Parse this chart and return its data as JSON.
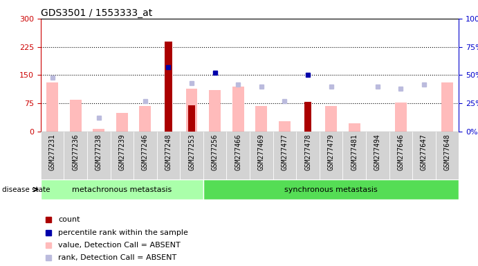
{
  "title": "GDS3501 / 1553333_at",
  "samples": [
    "GSM277231",
    "GSM277236",
    "GSM277238",
    "GSM277239",
    "GSM277246",
    "GSM277248",
    "GSM277253",
    "GSM277256",
    "GSM277466",
    "GSM277469",
    "GSM277477",
    "GSM277478",
    "GSM277479",
    "GSM277481",
    "GSM277494",
    "GSM277646",
    "GSM277647",
    "GSM277648"
  ],
  "count": [
    0,
    0,
    0,
    0,
    0,
    240,
    70,
    0,
    0,
    0,
    0,
    80,
    0,
    0,
    0,
    0,
    0,
    0
  ],
  "percentile_rank": [
    null,
    null,
    null,
    null,
    null,
    57,
    null,
    52,
    null,
    null,
    null,
    50,
    null,
    null,
    null,
    null,
    null,
    null
  ],
  "value_absent": [
    130,
    85,
    8,
    50,
    68,
    null,
    115,
    110,
    120,
    68,
    28,
    null,
    68,
    22,
    null,
    78,
    null,
    130
  ],
  "rank_absent": [
    48,
    null,
    12,
    null,
    27,
    null,
    43,
    null,
    42,
    40,
    27,
    null,
    40,
    null,
    40,
    38,
    42,
    null
  ],
  "group1_count": 7,
  "group1_label": "metachronous metastasis",
  "group2_label": "synchronous metastasis",
  "ylim_left": [
    0,
    300
  ],
  "ylim_right": [
    0,
    100
  ],
  "yticks_left": [
    0,
    75,
    150,
    225,
    300
  ],
  "yticks_right": [
    0,
    25,
    50,
    75,
    100
  ],
  "left_tick_color": "#cc0000",
  "right_tick_color": "#0000cc",
  "value_absent_color": "#ffbbbb",
  "rank_absent_color": "#bbbbdd",
  "count_color": "#aa0000",
  "percentile_color": "#0000aa",
  "group_bg1": "#aaffaa",
  "group_bg2": "#55dd55",
  "group_border_color": "#ffffff",
  "legend_items": [
    "count",
    "percentile rank within the sample",
    "value, Detection Call = ABSENT",
    "rank, Detection Call = ABSENT"
  ],
  "legend_colors": [
    "#aa0000",
    "#0000aa",
    "#ffbbbb",
    "#bbbbdd"
  ]
}
